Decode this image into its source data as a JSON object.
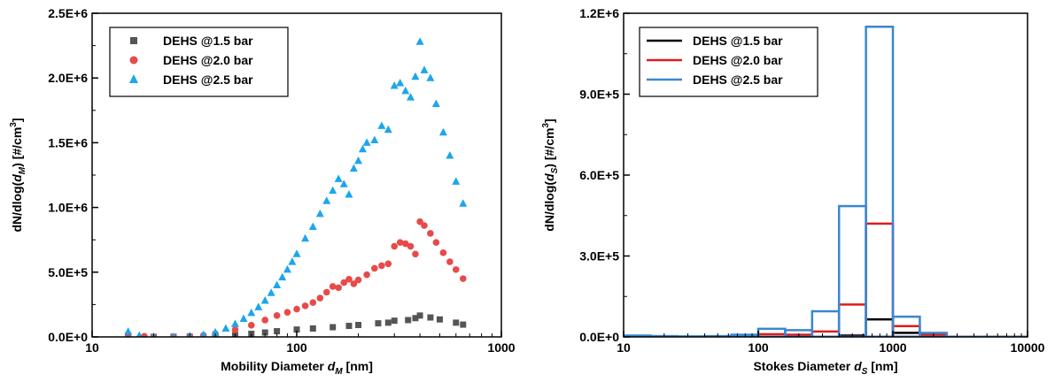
{
  "chart_data": [
    {
      "type": "scatter",
      "xscale": "log",
      "xlim": [
        10,
        1000
      ],
      "ylim": [
        0,
        2500000
      ],
      "xticks": [
        "10",
        "100",
        "1000"
      ],
      "yticks": [
        "0.0E+0",
        "5.0E+5",
        "1.0E+6",
        "1.5E+6",
        "2.0E+6",
        "2.5E+6"
      ],
      "xlabel": "Mobility Diameter",
      "xlabel_sym": "d",
      "xlabel_sub": "M",
      "xlabel_unit": " [nm]",
      "ylabel_pre": "dN/dlog(",
      "ylabel_sym": "d",
      "ylabel_sub": "M",
      "ylabel_post": ") [#/cm",
      "ylabel_sup": "3",
      "ylabel_end": "]",
      "legend_position": "top-left",
      "series": [
        {
          "name": "DEHS @1.5 bar",
          "color": "#555555",
          "marker": "square",
          "x": [
            15,
            20,
            25,
            30,
            40,
            50,
            60,
            70,
            80,
            100,
            120,
            150,
            180,
            200,
            250,
            280,
            300,
            350,
            380,
            400,
            450,
            500,
            600,
            650
          ],
          "y": [
            0,
            0,
            1000,
            2000,
            6000,
            14000,
            24000,
            34000,
            44000,
            57000,
            65000,
            75000,
            85000,
            92000,
            105000,
            110000,
            125000,
            130000,
            145000,
            165000,
            150000,
            135000,
            110000,
            95000
          ]
        },
        {
          "name": "DEHS @2.0 bar",
          "color": "#e84a4a",
          "marker": "circle",
          "x": [
            15,
            18,
            20,
            25,
            30,
            35,
            40,
            50,
            60,
            70,
            80,
            90,
            100,
            110,
            120,
            130,
            140,
            150,
            160,
            170,
            180,
            190,
            200,
            220,
            240,
            260,
            280,
            300,
            320,
            340,
            360,
            380,
            400,
            420,
            450,
            480,
            520,
            560,
            600,
            650
          ],
          "y": [
            20000,
            5000,
            0,
            0,
            5000,
            12000,
            25000,
            55000,
            90000,
            130000,
            165000,
            190000,
            215000,
            240000,
            265000,
            300000,
            345000,
            390000,
            380000,
            420000,
            445000,
            410000,
            440000,
            480000,
            530000,
            550000,
            565000,
            700000,
            730000,
            720000,
            700000,
            640000,
            890000,
            860000,
            800000,
            730000,
            650000,
            580000,
            520000,
            450000
          ]
        },
        {
          "name": "DEHS @2.5 bar",
          "color": "#1ca6ec",
          "marker": "triangle",
          "x": [
            15,
            17,
            20,
            25,
            30,
            35,
            40,
            45,
            50,
            55,
            60,
            65,
            70,
            75,
            80,
            85,
            90,
            95,
            100,
            110,
            120,
            130,
            140,
            150,
            160,
            170,
            180,
            190,
            200,
            210,
            220,
            240,
            260,
            280,
            300,
            320,
            340,
            360,
            380,
            400,
            420,
            450,
            480,
            520,
            560,
            600,
            650
          ],
          "y": [
            40000,
            10000,
            0,
            0,
            5000,
            15000,
            35000,
            65000,
            100000,
            140000,
            185000,
            230000,
            280000,
            340000,
            400000,
            460000,
            520000,
            580000,
            640000,
            760000,
            850000,
            950000,
            1050000,
            1130000,
            1220000,
            1180000,
            1100000,
            1300000,
            1360000,
            1450000,
            1500000,
            1520000,
            1630000,
            1600000,
            1940000,
            1960000,
            1900000,
            1850000,
            2010000,
            2280000,
            2060000,
            2000000,
            1800000,
            1580000,
            1400000,
            1200000,
            1030000
          ]
        }
      ]
    },
    {
      "type": "histogram",
      "xscale": "log",
      "xlim": [
        10,
        10000
      ],
      "ylim": [
        0,
        1200000
      ],
      "xticks": [
        "10",
        "100",
        "1000",
        "10000"
      ],
      "yticks": [
        "0.0E+0",
        "3.0E+5",
        "6.0E+5",
        "9.0E+5",
        "1.2E+6"
      ],
      "xlabel": "Stokes Diameter",
      "xlabel_sym": "d",
      "xlabel_sub": "S",
      "xlabel_unit": " [nm]",
      "ylabel_pre": "dN/dlog(",
      "ylabel_sym": "d",
      "ylabel_sub": "S",
      "ylabel_post": ") [#/cm",
      "ylabel_sup": "3",
      "ylabel_end": "]",
      "legend_position": "top-left",
      "bin_edges": [
        10,
        15.85,
        25.12,
        39.81,
        63.1,
        100,
        158.5,
        251.2,
        398.1,
        631,
        1000,
        1585,
        2512,
        3981,
        6310,
        10000
      ],
      "series": [
        {
          "name": "DEHS @1.5 bar",
          "color": "#000000",
          "values": [
            0,
            0,
            0,
            0,
            0,
            0,
            0,
            0,
            5000,
            65000,
            15000,
            3000,
            0,
            0,
            0
          ]
        },
        {
          "name": "DEHS @2.0 bar",
          "color": "#e11a1a",
          "values": [
            0,
            0,
            0,
            0,
            0,
            10000,
            8000,
            20000,
            120000,
            420000,
            40000,
            8000,
            0,
            0,
            0
          ]
        },
        {
          "name": "DEHS @2.5 bar",
          "color": "#3a87cf",
          "values": [
            5000,
            3000,
            2000,
            3000,
            8000,
            30000,
            25000,
            95000,
            485000,
            1150000,
            75000,
            15000,
            0,
            0,
            0
          ]
        }
      ]
    }
  ]
}
